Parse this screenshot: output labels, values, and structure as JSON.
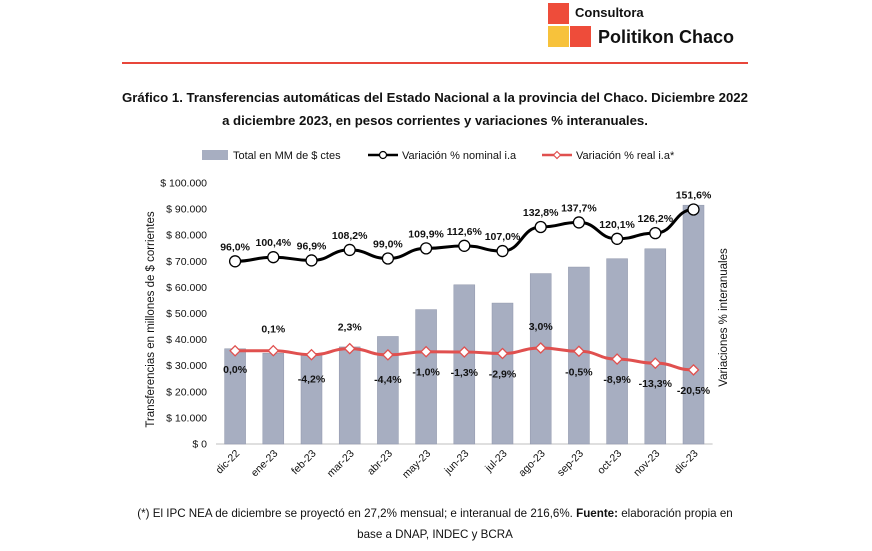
{
  "brand": {
    "line1": "Consultora",
    "line2": "Politikon Chaco"
  },
  "title_line1": "Gráfico 1. Transferencias automáticas del Estado Nacional a la provincia del Chaco. Diciembre 2022",
  "title_line2": "a diciembre 2023, en pesos corrientes y variaciones % interanuales.",
  "footnote_line1_pre": "(*) El IPC NEA de diciembre se proyectó en 27,2% mensual; e interanual de 216,6%. ",
  "footnote_line1_bold": "Fuente:",
  "footnote_line1_post": " elaboración propia en",
  "footnote_line2": "base a DNAP, INDEC y BCRA",
  "colors": {
    "bars": "#a7aec1",
    "nominal": "#000000",
    "real": "#e0504f",
    "brand_red": "#ee4c3a",
    "brand_yellow": "#f7c23b"
  },
  "chart_data": {
    "type": "bar",
    "categories": [
      "dic-22",
      "ene-23",
      "feb-23",
      "mar-23",
      "abr-23",
      "may-23",
      "jun-23",
      "jul-23",
      "ago-23",
      "sep-23",
      "oct-23",
      "nov-23",
      "dic-23"
    ],
    "series": [
      {
        "name": "Total en MM de $ ctes",
        "type": "bar",
        "axis": "left",
        "values": [
          36500,
          34800,
          34200,
          37200,
          41200,
          51500,
          61000,
          54000,
          65300,
          67800,
          71000,
          74800,
          91500
        ]
      },
      {
        "name": "Variación % nominal i.a",
        "type": "line",
        "axis": "right",
        "values": [
          96.0,
          100.4,
          96.9,
          108.2,
          99.0,
          109.9,
          112.6,
          107.0,
          132.8,
          137.7,
          120.1,
          126.2,
          151.6
        ],
        "labels": [
          "96,0%",
          "100,4%",
          "96,9%",
          "108,2%",
          "99,0%",
          "109,9%",
          "112,6%",
          "107,0%",
          "132,8%",
          "137,7%",
          "120,1%",
          "126,2%",
          "151,6%"
        ]
      },
      {
        "name": "Variación % real i.a*",
        "type": "line",
        "axis": "right",
        "values": [
          0.0,
          0.1,
          -4.2,
          2.3,
          -4.4,
          -1.0,
          -1.3,
          -2.9,
          3.0,
          -0.5,
          -8.9,
          -13.3,
          -20.5
        ],
        "labels": [
          "0,0%",
          "0,1%",
          "-4,2%",
          "2,3%",
          "-4,4%",
          "-1,0%",
          "-1,3%",
          "-2,9%",
          "3,0%",
          "-0,5%",
          "-8,9%",
          "-13,3%",
          "-20,5%"
        ]
      }
    ],
    "ylabel": "Transferencias en millones de $ corrientes",
    "y2label": "Variaciones % interanuales",
    "ylim": [
      0,
      100000
    ],
    "yticks": [
      0,
      10000,
      20000,
      30000,
      40000,
      50000,
      60000,
      70000,
      80000,
      90000,
      100000
    ],
    "ytick_labels": [
      "$ 0",
      "$ 10.000",
      "$ 20.000",
      "$ 30.000",
      "$ 40.000",
      "$ 50.000",
      "$ 60.000",
      "$ 70.000",
      "$ 80.000",
      "$ 90.000",
      "$ 100.000"
    ],
    "y2lim": [
      -100,
      180
    ],
    "y2_tick_labels_shown": false,
    "grid": false,
    "legend_position": "top"
  }
}
